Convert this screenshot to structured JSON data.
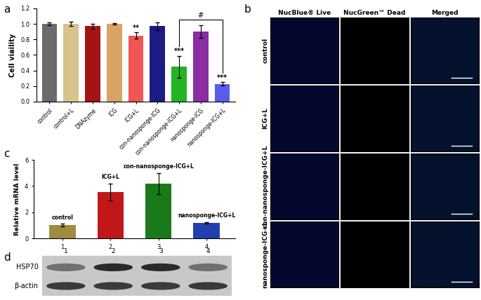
{
  "panel_labels": [
    "a",
    "b",
    "c",
    "d"
  ],
  "chart_data": [
    {
      "type": "bar",
      "y_label": "Cell viaility",
      "categories": [
        "control",
        "control+L",
        "DNAzyme",
        "ICG",
        "ICG+L",
        "con-nanosponge-ICG",
        "con-nanosponge-ICG+L",
        "nanosponge-ICG",
        "nanosponge-ICG+L"
      ],
      "values": [
        1.0,
        1.0,
        0.97,
        1.0,
        0.85,
        0.97,
        0.45,
        0.9,
        0.23
      ],
      "errors": [
        0.02,
        0.03,
        0.03,
        0.01,
        0.04,
        0.05,
        0.14,
        0.08,
        0.02
      ],
      "colors": [
        "#6b6b6b",
        "#d6c48c",
        "#a31515",
        "#d9a463",
        "#f25555",
        "#1c1c84",
        "#22b422",
        "#8b2ca3",
        "#5c5cec"
      ],
      "ylim": [
        0,
        1.2
      ],
      "yticks": [
        0.0,
        0.2,
        0.4,
        0.6,
        0.8,
        1.0,
        1.2
      ],
      "annotations": [
        {
          "category": "ICG+L",
          "text": "**"
        },
        {
          "category": "con-nanosponge-ICG+L",
          "text": "***"
        },
        {
          "category": "nanosponge-ICG+L",
          "text": "***"
        }
      ],
      "comparison": {
        "from": "con-nanosponge-ICG+L",
        "to": "nanosponge-ICG+L",
        "text": "#"
      }
    },
    {
      "type": "bar",
      "y_label": "Relative mRNA level",
      "categories": [
        "1",
        "2",
        "3",
        "4"
      ],
      "bar_names": [
        "control",
        "ICG+L",
        "con-nanosponge-ICG+L",
        "nanosponge-ICG+L"
      ],
      "values": [
        1.0,
        3.55,
        4.2,
        1.2
      ],
      "errors": [
        0.1,
        0.65,
        0.8,
        0.05
      ],
      "colors": [
        "#a08c40",
        "#c01818",
        "#1a7a1a",
        "#2040b0"
      ],
      "ylim": [
        0,
        6
      ],
      "yticks": [
        0,
        2,
        4,
        6
      ]
    }
  ],
  "microscopy": {
    "columns": [
      "NucBlue® Live",
      "NucGreen™ Dead",
      "Merged"
    ],
    "rows": [
      "control",
      "ICG+L",
      "con-nanosponge-ICG+L",
      "nanosponge-ICG+L"
    ]
  },
  "western_blot": {
    "lanes": [
      "1",
      "2",
      "3",
      "4"
    ],
    "rows": [
      "HSP70",
      "β-actin"
    ]
  }
}
